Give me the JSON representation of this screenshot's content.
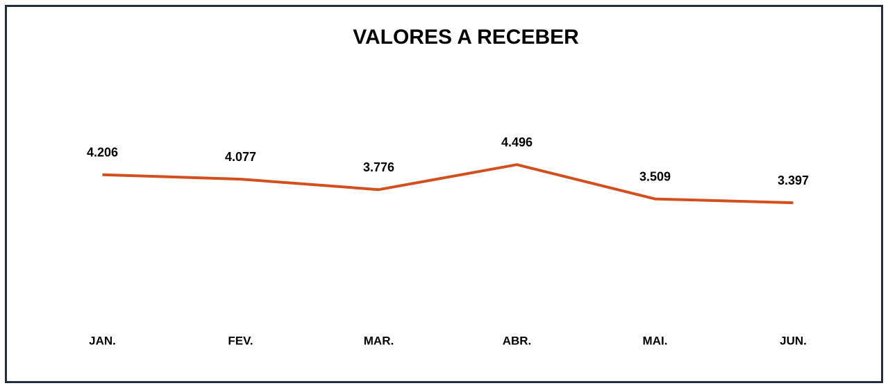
{
  "chart_data": {
    "type": "line",
    "title": "VALORES A RECEBER",
    "categories": [
      "JAN.",
      "FEV.",
      "MAR.",
      "ABR.",
      "MAI.",
      "JUN."
    ],
    "values": [
      4.206,
      4.077,
      3.776,
      4.496,
      3.509,
      3.397
    ],
    "color": "#d24f1e",
    "ylim": [
      0,
      8
    ]
  }
}
